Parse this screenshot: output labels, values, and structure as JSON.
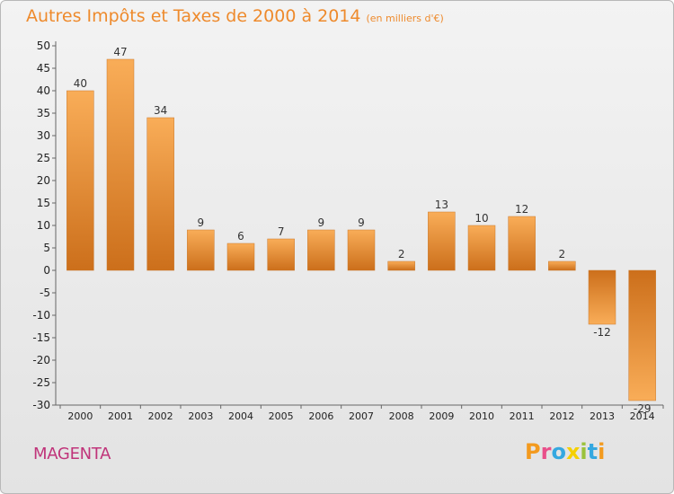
{
  "header": {
    "title": "Autres Impôts et Taxes de 2000 à 2014",
    "unit": "(en milliers d'€)"
  },
  "footer": {
    "place": "MAGENTA",
    "logo_letters": [
      "P",
      "r",
      "o",
      "x",
      "i",
      "t",
      "i"
    ],
    "logo_colors": [
      "#f39a1e",
      "#e94f8a",
      "#35a8e0",
      "#f5d000",
      "#9bc23b",
      "#35a8e0",
      "#f39a1e"
    ]
  },
  "colors": {
    "bar_light": "#f9ad58",
    "bar_dark": "#cc6f1b",
    "title": "#ee8a2c",
    "place": "#c0347a"
  },
  "chart_data": {
    "type": "bar",
    "title": "Autres Impôts et Taxes de 2000 à 2014",
    "unit": "(en milliers d'€)",
    "categories": [
      "2000",
      "2001",
      "2002",
      "2003",
      "2004",
      "2005",
      "2006",
      "2007",
      "2008",
      "2009",
      "2010",
      "2011",
      "2012",
      "2013",
      "2014"
    ],
    "values": [
      40,
      47,
      34,
      9,
      6,
      7,
      9,
      9,
      2,
      13,
      10,
      12,
      2,
      -12,
      -29
    ],
    "labels": [
      "40",
      "47",
      "34",
      "9",
      "6",
      "7",
      "9",
      "9",
      "2",
      "13",
      "10",
      "12",
      "2",
      "-12",
      "-29"
    ],
    "ylim": [
      -30,
      50
    ],
    "yticks": [
      50,
      45,
      40,
      35,
      30,
      25,
      20,
      15,
      10,
      5,
      0,
      -5,
      -10,
      -15,
      -20,
      -25,
      -30
    ],
    "grid": false
  }
}
